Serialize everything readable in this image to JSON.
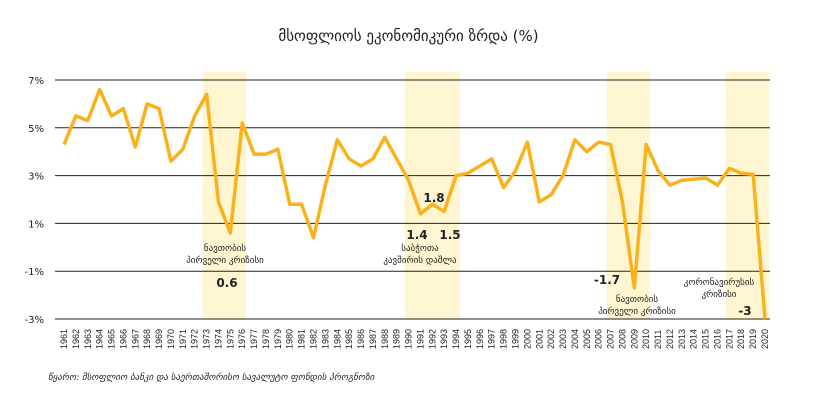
{
  "chart_data": {
    "type": "line",
    "title": "მსოფლიოს ეკონომიკური ზრდა (%)",
    "source": "წყარო: მსოფლიო ბანკი და საერთაშორისო სავალუტო ფონდის პროგნოზი",
    "xlabel": "",
    "ylabel": "",
    "ylim": [
      -3,
      7
    ],
    "yticks": [
      7,
      5,
      3,
      1,
      -1,
      -3
    ],
    "ytick_labels": [
      "7%",
      "5%",
      "3%",
      "1%",
      "-1%",
      "-3%"
    ],
    "grid": true,
    "x": [
      1961,
      1962,
      1963,
      1964,
      1965,
      1966,
      1967,
      1968,
      1969,
      1970,
      1971,
      1972,
      1973,
      1974,
      1975,
      1976,
      1977,
      1978,
      1979,
      1980,
      1981,
      1982,
      1983,
      1984,
      1985,
      1986,
      1987,
      1988,
      1989,
      1990,
      1991,
      1992,
      1993,
      1994,
      1995,
      1996,
      1997,
      1998,
      1999,
      2000,
      2001,
      2002,
      2003,
      2004,
      2005,
      2006,
      2007,
      2008,
      2009,
      2010,
      2011,
      2012,
      2013,
      2014,
      2015,
      2016,
      2017,
      2018,
      2019,
      2020
    ],
    "series": [
      {
        "name": "მსოფლიოს ეკონომიკური ზრდა",
        "color": "#f9b21b",
        "values": [
          4.3,
          5.5,
          5.3,
          6.6,
          5.5,
          5.8,
          4.2,
          6.0,
          5.8,
          3.6,
          4.1,
          5.5,
          6.4,
          1.9,
          0.6,
          5.2,
          3.9,
          3.9,
          4.1,
          1.8,
          1.8,
          0.4,
          2.6,
          4.5,
          3.7,
          3.4,
          3.7,
          4.6,
          3.7,
          2.8,
          1.4,
          1.8,
          1.5,
          3.0,
          3.1,
          3.4,
          3.7,
          2.5,
          3.2,
          4.4,
          1.9,
          2.2,
          3.0,
          4.5,
          4.0,
          4.4,
          4.3,
          1.9,
          -1.7,
          4.3,
          3.2,
          2.6,
          2.8,
          2.85,
          2.9,
          2.6,
          3.3,
          3.1,
          3.05,
          -3.0
        ]
      }
    ],
    "highlight_color": "#fff6d1",
    "highlights": [
      [
        1973,
        1976
      ],
      [
        1990,
        1994
      ],
      [
        2007,
        2010
      ],
      [
        2017,
        2020
      ]
    ],
    "annotations": [
      {
        "lines": [
          "ნავთობის",
          "პირველი კრიზისი"
        ],
        "value": "0.6"
      },
      {
        "lines": [
          "საბჭოთა",
          "კავშირის დაშლა"
        ],
        "values": [
          "1.4",
          "1.8",
          "1.5"
        ]
      },
      {
        "lines": [
          "ნავთობის",
          "პირველი კრიზისი"
        ],
        "value": "-1.7"
      },
      {
        "lines": [
          "კორონავირუსის",
          "კრიზისი"
        ],
        "value": "-3"
      }
    ]
  }
}
